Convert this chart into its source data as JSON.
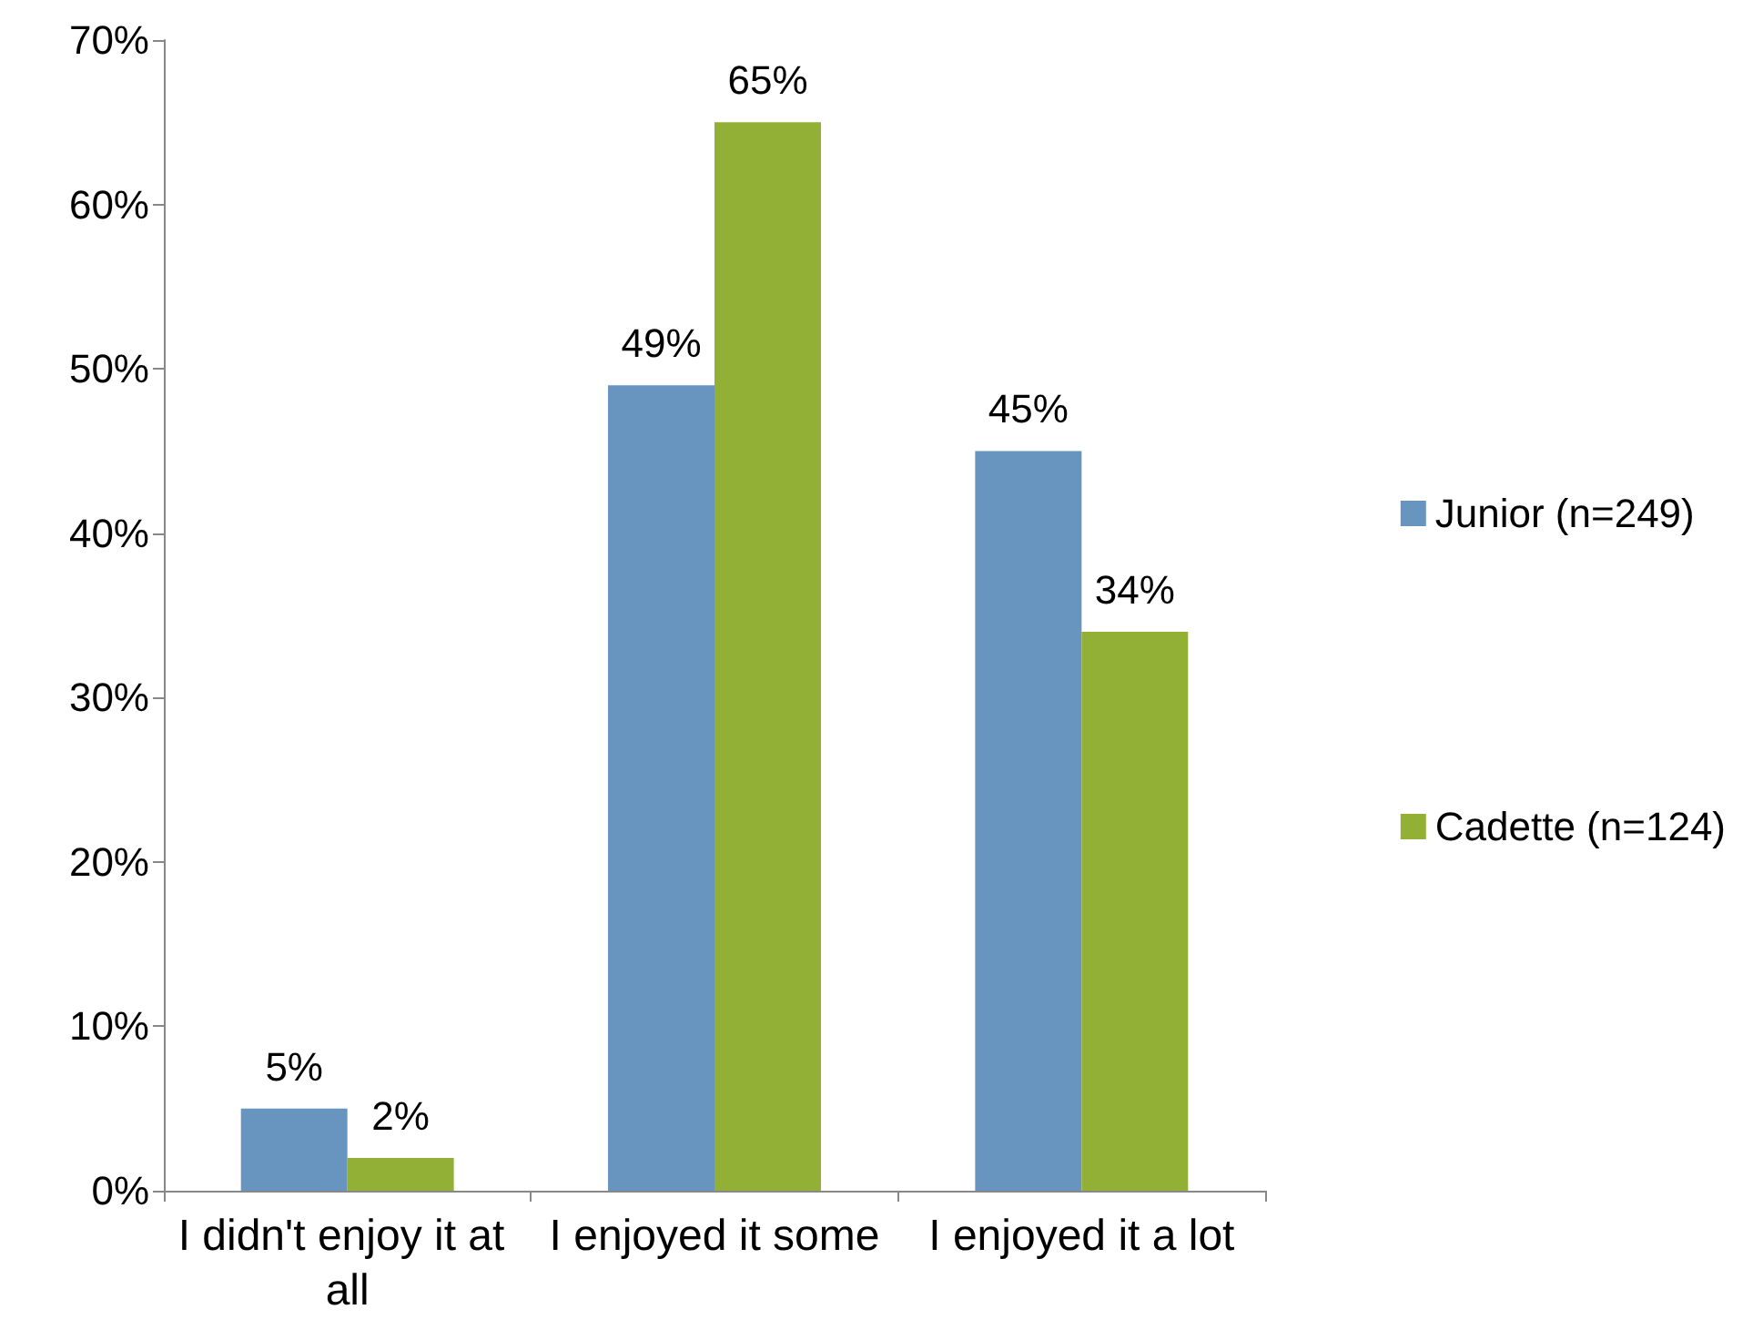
{
  "chart_data": {
    "type": "bar",
    "categories": [
      "I didn't enjoy it at all",
      "I enjoyed it some",
      "I enjoyed it a lot"
    ],
    "series": [
      {
        "name": "Junior (n=249)",
        "color": "#6894c0",
        "values": [
          5,
          49,
          45
        ],
        "value_labels": [
          "5%",
          "49%",
          "45%"
        ]
      },
      {
        "name": "Cadette (n=124)",
        "color": "#93b036",
        "values": [
          2,
          65,
          34
        ],
        "value_labels": [
          "2%",
          "65%",
          "34%"
        ]
      }
    ],
    "ylim": [
      0,
      70
    ],
    "yticks": [
      {
        "value": 0,
        "label": "0%"
      },
      {
        "value": 10,
        "label": "10%"
      },
      {
        "value": 20,
        "label": "20%"
      },
      {
        "value": 30,
        "label": "30%"
      },
      {
        "value": 40,
        "label": "40%"
      },
      {
        "value": 50,
        "label": "50%"
      },
      {
        "value": 60,
        "label": "60%"
      },
      {
        "value": 70,
        "label": "70%"
      }
    ],
    "grid": false,
    "legend": "right"
  }
}
